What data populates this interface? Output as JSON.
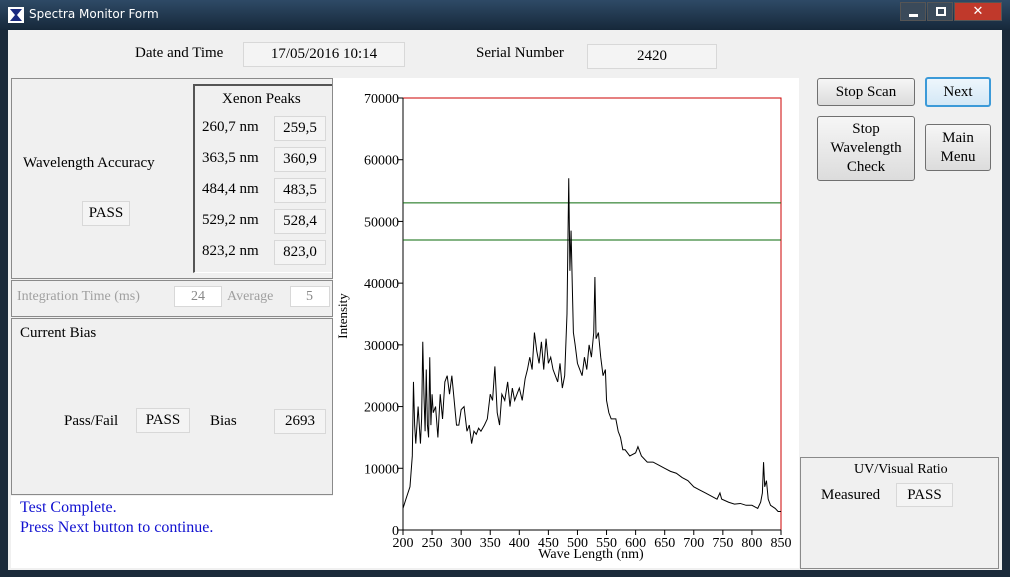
{
  "window": {
    "title": "Spectra Monitor Form"
  },
  "header": {
    "date_label": "Date and Time",
    "date_value": "17/05/2016 10:14",
    "serial_label": "Serial Number",
    "serial_value": "2420"
  },
  "wavelength_accuracy": {
    "label": "Wavelength Accuracy",
    "result": "PASS",
    "peaks_title": "Xenon Peaks",
    "peaks": [
      {
        "nominal": "260,7 nm",
        "measured": "259,5"
      },
      {
        "nominal": "363,5 nm",
        "measured": "360,9"
      },
      {
        "nominal": "484,4 nm",
        "measured": "483,5"
      },
      {
        "nominal": "529,2 nm",
        "measured": "528,4"
      },
      {
        "nominal": "823,2 nm",
        "measured": "823,0"
      }
    ]
  },
  "settings": {
    "integration_label": "Integration Time (ms)",
    "integration_value": 24,
    "average_label": "Average",
    "average_value": 5
  },
  "current_bias": {
    "title": "Current Bias",
    "pass_fail_label": "Pass/Fail",
    "pass_fail": "PASS",
    "bias_label": "Bias",
    "bias_value": 2693
  },
  "status": {
    "lines": [
      "Test Complete.",
      "Press Next button to continue."
    ]
  },
  "buttons": {
    "stop_scan": "Stop Scan",
    "next": "Next",
    "stop_wavelength_check": "Stop Wavelength Check",
    "main_menu": "Main Menu"
  },
  "uv_ratio": {
    "title": "UV/Visual Ratio",
    "measured_label": "Measured",
    "measured_value": "PASS"
  },
  "chart_data": {
    "type": "line",
    "x_label": "Wave Length (nm)",
    "y_label": "Intensity",
    "color": "#000000",
    "frame_color": "#cc0000",
    "threshold_color": "#0a6a0a",
    "threshold_lines": [
      53000,
      47000
    ],
    "xlim": [
      200,
      850
    ],
    "ylim": [
      0,
      70000
    ],
    "xticks": [
      200,
      250,
      300,
      350,
      400,
      450,
      500,
      550,
      600,
      650,
      700,
      750,
      800,
      850
    ],
    "yticks": [
      0,
      10000,
      20000,
      30000,
      40000,
      50000,
      60000,
      70000
    ],
    "x": [
      200,
      205,
      212,
      216,
      218,
      220,
      222,
      226,
      228,
      230,
      232,
      234,
      236,
      238,
      240,
      242,
      244,
      246,
      248,
      250,
      252,
      256,
      260,
      264,
      268,
      272,
      276,
      280,
      284,
      288,
      292,
      296,
      300,
      305,
      310,
      314,
      318,
      322,
      326,
      330,
      334,
      340,
      345,
      350,
      354,
      358,
      362,
      366,
      370,
      375,
      380,
      384,
      388,
      392,
      396,
      400,
      405,
      410,
      414,
      418,
      422,
      426,
      430,
      434,
      438,
      442,
      446,
      450,
      454,
      458,
      462,
      466,
      470,
      474,
      478,
      482,
      485,
      487,
      489,
      491,
      493,
      496,
      500,
      504,
      508,
      512,
      516,
      520,
      524,
      528,
      530,
      532,
      536,
      540,
      544,
      548,
      550,
      554,
      558,
      562,
      566,
      570,
      574,
      578,
      582,
      590,
      600,
      604,
      610,
      620,
      630,
      640,
      650,
      660,
      670,
      680,
      690,
      700,
      710,
      720,
      730,
      740,
      745,
      748,
      760,
      770,
      780,
      790,
      800,
      810,
      815,
      818,
      820,
      822,
      825,
      828,
      832,
      840,
      845,
      850
    ],
    "values": [
      3500,
      5000,
      7000,
      12000,
      24000,
      17000,
      14000,
      20000,
      17000,
      14000,
      18000,
      30500,
      22000,
      16000,
      26000,
      17000,
      15000,
      28000,
      17000,
      22000,
      19000,
      20000,
      15000,
      22000,
      18000,
      24000,
      25000,
      22000,
      25000,
      21000,
      17000,
      17000,
      19500,
      20000,
      16000,
      17000,
      14000,
      16000,
      15500,
      16500,
      16000,
      17000,
      18000,
      22000,
      21000,
      26500,
      19000,
      17000,
      22000,
      21000,
      24000,
      20000,
      23000,
      21000,
      22000,
      23000,
      21000,
      24500,
      26000,
      28000,
      26000,
      32000,
      29000,
      27000,
      30500,
      26000,
      31000,
      27000,
      28000,
      26000,
      25000,
      24000,
      27000,
      23000,
      25000,
      35000,
      57000,
      42000,
      48500,
      40000,
      32000,
      30000,
      27000,
      26000,
      25000,
      28000,
      26000,
      30000,
      28000,
      32000,
      41000,
      31000,
      32000,
      28000,
      25000,
      26000,
      21000,
      19000,
      18000,
      18000,
      18000,
      16000,
      15000,
      13000,
      13000,
      12000,
      12500,
      13500,
      12000,
      11000,
      11000,
      10500,
      10000,
      9500,
      9200,
      8500,
      8000,
      7000,
      6500,
      6000,
      5500,
      5000,
      6000,
      5000,
      4500,
      4200,
      4300,
      4000,
      4000,
      3500,
      4500,
      6000,
      11000,
      7000,
      8000,
      5000,
      4000,
      3500,
      3000,
      3000
    ]
  }
}
